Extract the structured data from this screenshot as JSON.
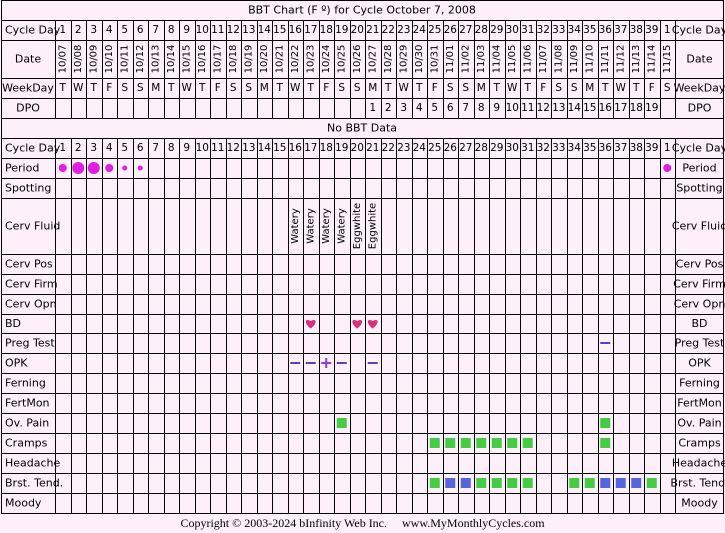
{
  "chart_data": {
    "type": "table",
    "title": "BBT Chart (F º) for Cycle October 7, 2008",
    "no_data_text": "No BBT Data",
    "row_labels": {
      "cycle_day": "Cycle Day",
      "date": "Date",
      "weekday": "WeekDay",
      "dpo": "DPO",
      "period": "Period",
      "spotting": "Spotting",
      "cerv_fluid": "Cerv Fluid",
      "cerv_pos": "Cerv Pos",
      "cerv_firm": "Cerv Firm",
      "cerv_opn": "Cerv Opn",
      "bd": "BD",
      "preg_test": "Preg Test",
      "opk": "OPK",
      "ferning": "Ferning",
      "fertmon": "FertMon",
      "ov_pain": "Ov. Pain",
      "cramps": "Cramps",
      "headache": "Headache",
      "brst_tend": "Brst. Tend.",
      "moody": "Moody"
    },
    "cycle_days": [
      "1",
      "2",
      "3",
      "4",
      "5",
      "6",
      "7",
      "8",
      "9",
      "10",
      "11",
      "12",
      "13",
      "14",
      "15",
      "16",
      "17",
      "18",
      "19",
      "20",
      "21",
      "22",
      "23",
      "24",
      "25",
      "26",
      "27",
      "28",
      "29",
      "30",
      "31",
      "32",
      "33",
      "34",
      "35",
      "36",
      "37",
      "38",
      "39",
      "1"
    ],
    "dates": [
      "10/07",
      "10/08",
      "10/09",
      "10/10",
      "10/11",
      "10/12",
      "10/13",
      "10/14",
      "10/15",
      "10/16",
      "10/17",
      "10/18",
      "10/19",
      "10/20",
      "10/21",
      "10/22",
      "10/23",
      "10/24",
      "10/25",
      "10/26",
      "10/27",
      "10/28",
      "10/29",
      "10/30",
      "10/31",
      "11/01",
      "11/02",
      "11/03",
      "11/04",
      "11/05",
      "11/06",
      "11/07",
      "11/08",
      "11/09",
      "11/10",
      "11/11",
      "11/12",
      "11/13",
      "11/14",
      "11/15"
    ],
    "weekdays": [
      "T",
      "W",
      "T",
      "F",
      "S",
      "S",
      "M",
      "T",
      "W",
      "T",
      "F",
      "S",
      "S",
      "M",
      "T",
      "W",
      "T",
      "F",
      "S",
      "S",
      "M",
      "T",
      "W",
      "T",
      "F",
      "S",
      "S",
      "M",
      "T",
      "W",
      "T",
      "F",
      "S",
      "S",
      "M",
      "T",
      "W",
      "T",
      "F",
      "S"
    ],
    "dpo": [
      "",
      "",
      "",
      "",
      "",
      "",
      "",
      "",
      "",
      "",
      "",
      "",
      "",
      "",
      "",
      "",
      "",
      "",
      "",
      "",
      "1",
      "2",
      "3",
      "4",
      "5",
      "6",
      "7",
      "8",
      "9",
      "10",
      "11",
      "12",
      "13",
      "14",
      "15",
      "16",
      "17",
      "18",
      "19",
      ""
    ],
    "period": [
      {
        "index": 0,
        "level": "medium"
      },
      {
        "index": 1,
        "level": "heavy"
      },
      {
        "index": 2,
        "level": "heavy"
      },
      {
        "index": 3,
        "level": "medium"
      },
      {
        "index": 4,
        "level": "light"
      },
      {
        "index": 5,
        "level": "light"
      },
      {
        "index": 39,
        "level": "medium"
      }
    ],
    "cerv_fluid": [
      {
        "index": 15,
        "value": "Watery"
      },
      {
        "index": 16,
        "value": "Watery"
      },
      {
        "index": 17,
        "value": "Watery"
      },
      {
        "index": 18,
        "value": "Watery"
      },
      {
        "index": 19,
        "value": "Eggwhite"
      },
      {
        "index": 20,
        "value": "Eggwhite"
      }
    ],
    "bd": [
      16,
      19,
      20
    ],
    "preg_test": [
      {
        "index": 35,
        "result": "negative"
      }
    ],
    "opk": [
      {
        "index": 15,
        "result": "negative"
      },
      {
        "index": 16,
        "result": "negative"
      },
      {
        "index": 17,
        "result": "positive"
      },
      {
        "index": 18,
        "result": "negative"
      },
      {
        "index": 20,
        "result": "negative"
      }
    ],
    "ov_pain": [
      {
        "index": 18,
        "color": "green"
      },
      {
        "index": 35,
        "color": "green"
      }
    ],
    "cramps": [
      {
        "index": 24,
        "color": "green"
      },
      {
        "index": 25,
        "color": "green"
      },
      {
        "index": 26,
        "color": "green"
      },
      {
        "index": 27,
        "color": "green"
      },
      {
        "index": 28,
        "color": "green"
      },
      {
        "index": 29,
        "color": "green"
      },
      {
        "index": 30,
        "color": "green"
      },
      {
        "index": 35,
        "color": "green"
      }
    ],
    "brst_tend": [
      {
        "index": 24,
        "color": "green"
      },
      {
        "index": 25,
        "color": "blue"
      },
      {
        "index": 26,
        "color": "blue"
      },
      {
        "index": 27,
        "color": "green"
      },
      {
        "index": 28,
        "color": "green"
      },
      {
        "index": 29,
        "color": "green"
      },
      {
        "index": 30,
        "color": "green"
      },
      {
        "index": 33,
        "color": "green"
      },
      {
        "index": 34,
        "color": "green"
      },
      {
        "index": 35,
        "color": "blue"
      },
      {
        "index": 36,
        "color": "blue"
      },
      {
        "index": 37,
        "color": "blue"
      },
      {
        "index": 38,
        "color": "green"
      }
    ]
  },
  "colors": {
    "background": "#fdf0fa",
    "grid": "#000000",
    "period": "#e020e0",
    "heart": "#d8307a",
    "opk_negative": "#5a3fbf",
    "opk_positive": "#8a3fd0",
    "preg_negative": "#5a3fbf",
    "symptom_green": "#44cc44",
    "symptom_blue": "#5566dd"
  },
  "footer": {
    "copyright": "Copyright © 2003-2024 bInfinity Web Inc.",
    "site": "www.MyMonthlyCycles.com"
  }
}
